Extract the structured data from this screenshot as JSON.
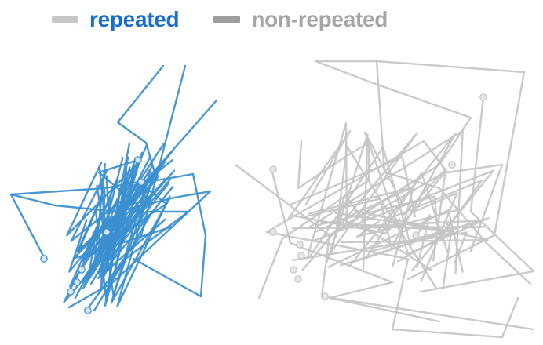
{
  "legend": {
    "items": [
      {
        "label": "repeated",
        "swatch_color": "#c8c8c8",
        "text_color": "#1a6fcc"
      },
      {
        "label": "non-repeated",
        "swatch_color": "#9e9e9e",
        "text_color": "#a6a6a6"
      }
    ]
  },
  "colors": {
    "repeated_line": "#3b8fcf",
    "repeated_marker": "#d6e6f2",
    "nonrepeated_line": "#c6c6c6",
    "nonrepeated_marker": "#e6e6e6"
  }
}
